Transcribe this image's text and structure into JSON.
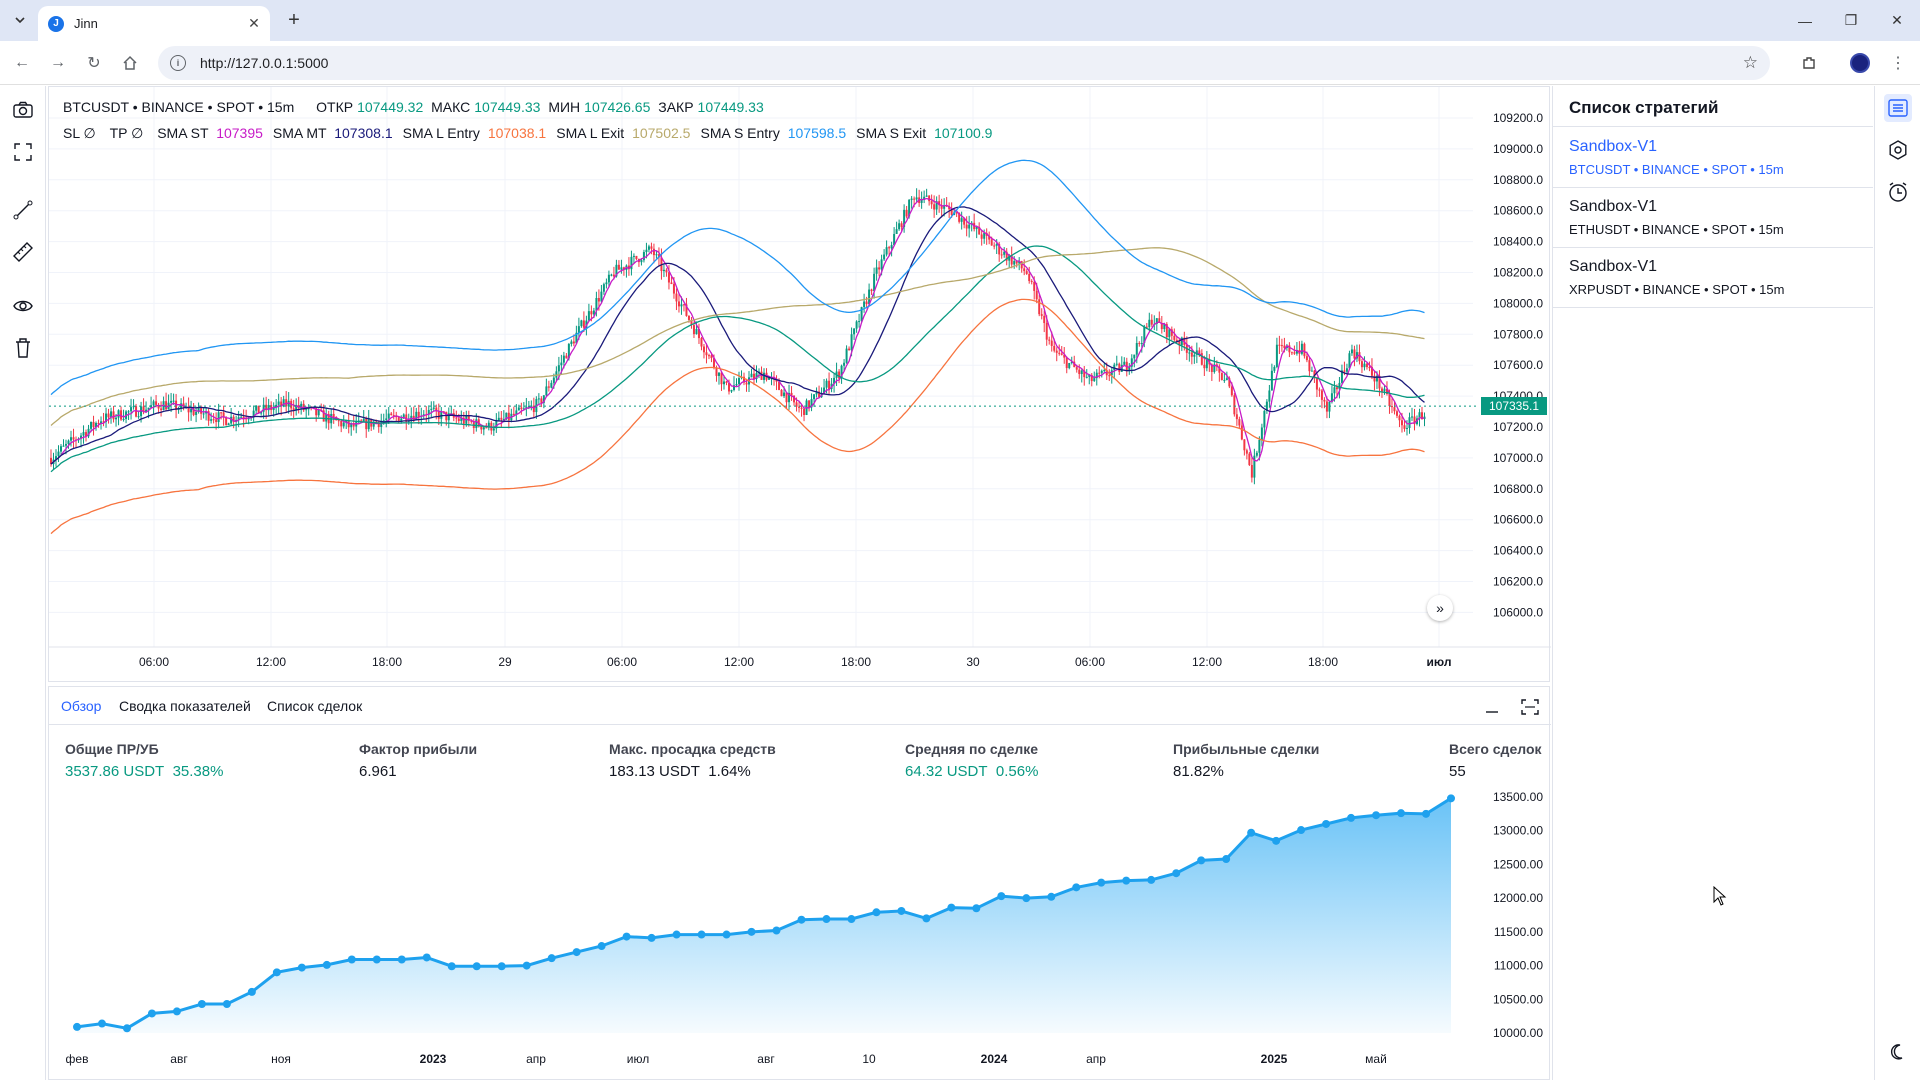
{
  "browser": {
    "tab_title": "Jinn",
    "url": "http://127.0.0.1:5000"
  },
  "chart": {
    "symbol_line": "BTCUSDT • BINANCE • SPOT • 15m",
    "ohlc": {
      "open_label": "ОТКР",
      "open": "107449.32",
      "high_label": "МАКС",
      "high": "107449.33",
      "low_label": "МИН",
      "low": "107426.65",
      "close_label": "ЗАКР",
      "close": "107449.33"
    },
    "indicators": [
      {
        "label": "SL ∅",
        "value": "",
        "color": "#131722"
      },
      {
        "label": "TP ∅",
        "value": "",
        "color": "#131722"
      },
      {
        "label": "SMA ST",
        "value": "107395",
        "color": "#c71bc7"
      },
      {
        "label": "SMA MT",
        "value": "107308.1",
        "color": "#1a1a7a"
      },
      {
        "label": "SMA L Entry",
        "value": "107038.1",
        "color": "#f7743f"
      },
      {
        "label": "SMA L Exit",
        "value": "107502.5",
        "color": "#b8a96b"
      },
      {
        "label": "SMA S Entry",
        "value": "107598.5",
        "color": "#2196f3"
      },
      {
        "label": "SMA S Exit",
        "value": "107100.9",
        "color": "#089981"
      }
    ],
    "last_price": "107335.1",
    "price_ticks": [
      "109200.0",
      "109000.0",
      "108800.0",
      "108600.0",
      "108400.0",
      "108200.0",
      "108000.0",
      "107800.0",
      "107600.0",
      "107400.0",
      "107200.0",
      "107000.0",
      "106800.0",
      "106600.0",
      "106400.0",
      "106200.0",
      "106000.0"
    ],
    "time_ticks": [
      "06:00",
      "12:00",
      "18:00",
      "29",
      "06:00",
      "12:00",
      "18:00",
      "30",
      "06:00",
      "12:00",
      "18:00",
      "июл"
    ],
    "colors": {
      "up": "#089981",
      "down": "#f23645",
      "grid": "#f0f3fa"
    }
  },
  "bottom": {
    "tabs": [
      "Обзор",
      "Сводка показателей",
      "Список сделок"
    ],
    "stats": [
      {
        "label": "Общие ПР/УБ",
        "value": "3537.86 USDT",
        "extra": "35.38%",
        "green": true
      },
      {
        "label": "Фактор прибыли",
        "value": "6.961",
        "extra": "",
        "green": false
      },
      {
        "label": "Макс. просадка средств",
        "value": "183.13 USDT",
        "extra": "1.64%",
        "green": false
      },
      {
        "label": "Средняя по сделке",
        "value": "64.32 USDT",
        "extra": "0.56%",
        "green": true
      },
      {
        "label": "Прибыльные сделки",
        "value": "81.82%",
        "extra": "",
        "green": false
      },
      {
        "label": "Всего сделок",
        "value": "55",
        "extra": "",
        "green": false
      }
    ],
    "equity_y_ticks": [
      "13500.00",
      "13000.00",
      "12500.00",
      "12000.00",
      "11500.00",
      "11000.00",
      "10500.00",
      "10000.00"
    ],
    "equity_x_ticks": [
      "фев",
      "авг",
      "ноя",
      "2023",
      "апр",
      "июл",
      "авг",
      "10",
      "2024",
      "апр",
      "2025",
      "май"
    ]
  },
  "chart_data": {
    "type": "area",
    "title": "",
    "xlabel": "",
    "ylabel": "",
    "ylim": [
      10000,
      13500
    ],
    "x": [
      1,
      2,
      3,
      4,
      5,
      6,
      7,
      8,
      9,
      10,
      11,
      12,
      13,
      14,
      15,
      16,
      17,
      18,
      19,
      20,
      21,
      22,
      23,
      24,
      25,
      26,
      27,
      28,
      29,
      30,
      31,
      32,
      33,
      34,
      35,
      36,
      37,
      38,
      39,
      40,
      41,
      42,
      43,
      44,
      45,
      46,
      47,
      48,
      49,
      50,
      51,
      52,
      53,
      54,
      55,
      56
    ],
    "series": [
      {
        "values": [
          10090,
          10140,
          10070,
          10290,
          10320,
          10430,
          10430,
          10610,
          10900,
          10970,
          11010,
          11090,
          11090,
          11090,
          11120,
          10990,
          10990,
          10990,
          11000,
          11110,
          11200,
          11290,
          11430,
          11410,
          11460,
          11460,
          11460,
          11500,
          11520,
          11680,
          11690,
          11690,
          11790,
          11810,
          11700,
          11860,
          11850,
          12030,
          12000,
          12020,
          12160,
          12230,
          12260,
          12270,
          12370,
          12560,
          12580,
          12970,
          12850,
          13010,
          13100,
          13190,
          13230,
          13260,
          13250,
          13480
        ]
      }
    ]
  },
  "strategies_panel": {
    "title": "Список стратегий",
    "items": [
      {
        "name": "Sandbox-V1",
        "sub": "BTCUSDT • BINANCE • SPOT • 15m",
        "active": true
      },
      {
        "name": "Sandbox-V1",
        "sub": "ETHUSDT • BINANCE • SPOT • 15m",
        "active": false
      },
      {
        "name": "Sandbox-V1",
        "sub": "XRPUSDT • BINANCE • SPOT • 15m",
        "active": false
      }
    ]
  }
}
